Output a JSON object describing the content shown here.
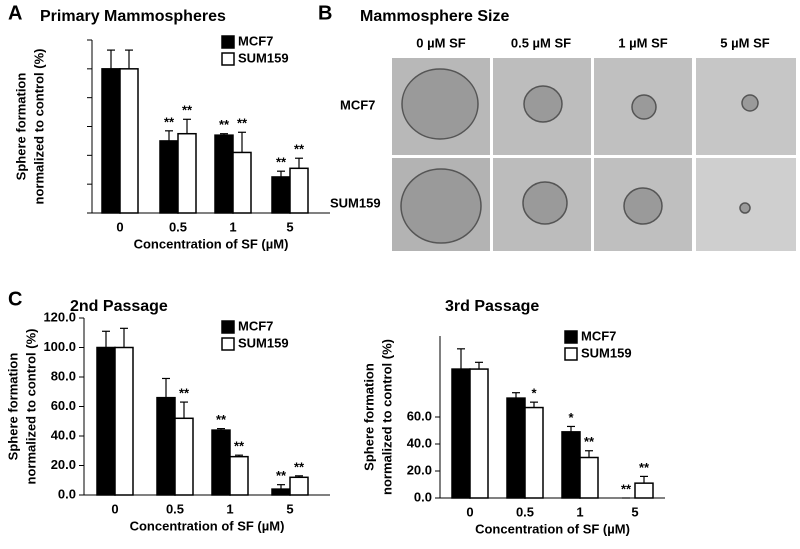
{
  "panel_labels": [
    "A",
    "B",
    "C"
  ],
  "image_grid": {
    "title": "Mammosphere Size",
    "columns": [
      "0 µM SF",
      "0.5 µM SF",
      "1 µM SF",
      "5 µM SF"
    ],
    "rows": [
      "MCF7",
      "SUM159"
    ]
  },
  "chart_data": [
    {
      "type": "bar",
      "title": "Primary Mammospheres",
      "xlabel": "Concentration of SF (µM)",
      "ylabel": [
        "Sphere formation",
        "normalized to control (%)"
      ],
      "categories": [
        "0",
        "0.5",
        "1",
        "5"
      ],
      "series": [
        {
          "name": "MCF7",
          "color": "#000000",
          "values": [
            100,
            50,
            54,
            25
          ],
          "errors": [
            13,
            7,
            1,
            4
          ],
          "annotations": [
            null,
            "**",
            "**",
            "**"
          ]
        },
        {
          "name": "SUM159",
          "color": "#ffffff",
          "values": [
            100,
            55,
            42,
            31
          ],
          "errors": [
            13,
            10,
            14,
            7
          ],
          "annotations": [
            null,
            "**",
            "**",
            "**"
          ]
        }
      ],
      "ylim": [
        0,
        120
      ],
      "yticks": [
        0,
        20,
        40,
        60,
        80,
        100,
        120
      ],
      "ytick_labels": false
    },
    {
      "type": "bar",
      "title": "2nd Passage",
      "xlabel": "Concentration of SF (µM)",
      "ylabel": [
        "Sphere formation",
        "normalized to control (%)"
      ],
      "categories": [
        "0",
        "0.5",
        "1",
        "5"
      ],
      "series": [
        {
          "name": "MCF7",
          "color": "#000000",
          "values": [
            100,
            66,
            44,
            4
          ],
          "errors": [
            11,
            13,
            1,
            3
          ],
          "annotations": [
            null,
            null,
            "**",
            "**"
          ]
        },
        {
          "name": "SUM159",
          "color": "#ffffff",
          "values": [
            100,
            52,
            26,
            12
          ],
          "errors": [
            13,
            11,
            1,
            1
          ],
          "annotations": [
            null,
            "**",
            "**",
            "**"
          ]
        }
      ],
      "ylim": [
        0,
        120
      ],
      "yticks": [
        {
          "value": 0,
          "label": "0.0"
        },
        {
          "value": 20,
          "label": "20.0"
        },
        {
          "value": 40,
          "label": "40.0"
        },
        {
          "value": 60,
          "label": "60.0"
        },
        {
          "value": 80,
          "label": "80.0"
        },
        {
          "value": 100,
          "label": "100.0"
        },
        {
          "value": 120,
          "label": "120.0"
        }
      ],
      "ytick_labels": true
    },
    {
      "type": "bar",
      "title": "3rd Passage",
      "xlabel": "Concentration of SF (µM)",
      "ylabel": [
        "Sphere formation",
        "normalized to control (%)"
      ],
      "categories": [
        "0",
        "0.5",
        "1",
        "5"
      ],
      "series": [
        {
          "name": "MCF7",
          "color": "#000000",
          "values": [
            95.5,
            74,
            49,
            0
          ],
          "errors": [
            15,
            4,
            4,
            0
          ],
          "annotations": [
            null,
            null,
            "*",
            "**"
          ]
        },
        {
          "name": "SUM159",
          "color": "#ffffff",
          "values": [
            95.5,
            67,
            30,
            11
          ],
          "errors": [
            5,
            4,
            5,
            5
          ],
          "annotations": [
            null,
            "*",
            "**",
            "**"
          ]
        }
      ],
      "ylim": [
        0,
        120
      ],
      "yticks": [
        {
          "value": 0,
          "label": "0.0"
        },
        {
          "value": 20,
          "label": "20.0"
        },
        {
          "value": 40,
          "label": "40.0"
        },
        {
          "value": 60,
          "label": "60.0"
        }
      ],
      "ytick_labels": true
    }
  ]
}
